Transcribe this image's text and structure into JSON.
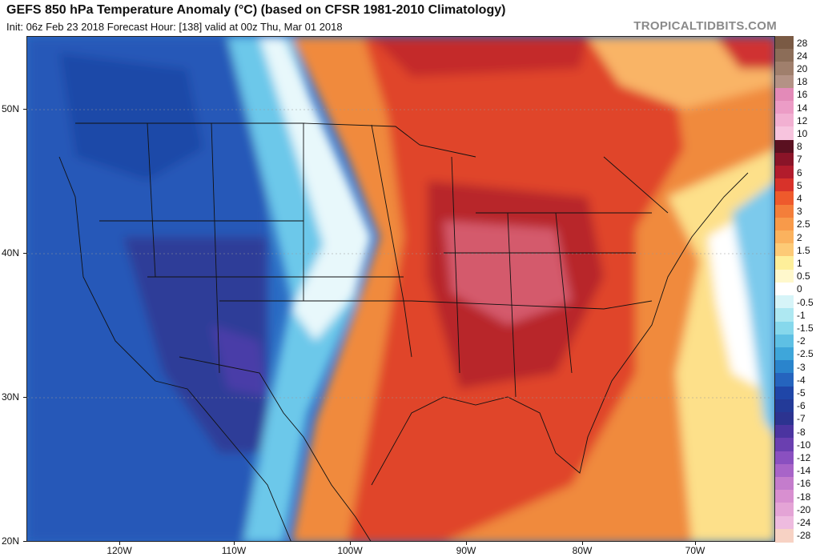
{
  "header": {
    "title": "GEFS 850 hPa Temperature Anomaly (°C) (based on CFSR 1981-2010 Climatology)",
    "subtitle": "Init: 06z Feb 23 2018   Forecast Hour: [138]   valid at 00z Thu, Mar 01 2018",
    "brand": "TROPICALTIDBITS.COM"
  },
  "axes": {
    "lat_labels": [
      "50N",
      "40N",
      "30N",
      "20N"
    ],
    "lon_labels": [
      "120W",
      "110W",
      "100W",
      "90W",
      "80W",
      "70W"
    ]
  },
  "colorbar": {
    "labels": [
      "28",
      "24",
      "20",
      "18",
      "16",
      "14",
      "12",
      "10",
      "8",
      "7",
      "6",
      "5",
      "4",
      "3",
      "2.5",
      "2",
      "1.5",
      "1",
      "0.5",
      "0",
      "-0.5",
      "-1",
      "-1.5",
      "-2",
      "-2.5",
      "-3",
      "-4",
      "-5",
      "-6",
      "-7",
      "-8",
      "-10",
      "-12",
      "-14",
      "-16",
      "-18",
      "-20",
      "-24",
      "-28"
    ],
    "colors": [
      "#7a5a44",
      "#8c6d58",
      "#a07f6c",
      "#b49285",
      "#e38ab8",
      "#ec9cc6",
      "#f2b0d2",
      "#f7c4de",
      "#5a1020",
      "#8a1428",
      "#b21c2c",
      "#d8322a",
      "#ee5a2c",
      "#f47e3a",
      "#f89a4a",
      "#fbb25e",
      "#fdca76",
      "#feef9a",
      "#fff8cc",
      "#ffffff",
      "#d6f4f8",
      "#aee8f2",
      "#86d8ec",
      "#5ec0e4",
      "#3ea6da",
      "#2a84cc",
      "#2564be",
      "#1f46a8",
      "#233a98",
      "#2c3390",
      "#4b34a0",
      "#6a3fb0",
      "#8a50c0",
      "#a864c8",
      "#c47ccc",
      "#d88fd0",
      "#e4a4d6",
      "#eebbdf",
      "#f7d2c4"
    ]
  }
}
